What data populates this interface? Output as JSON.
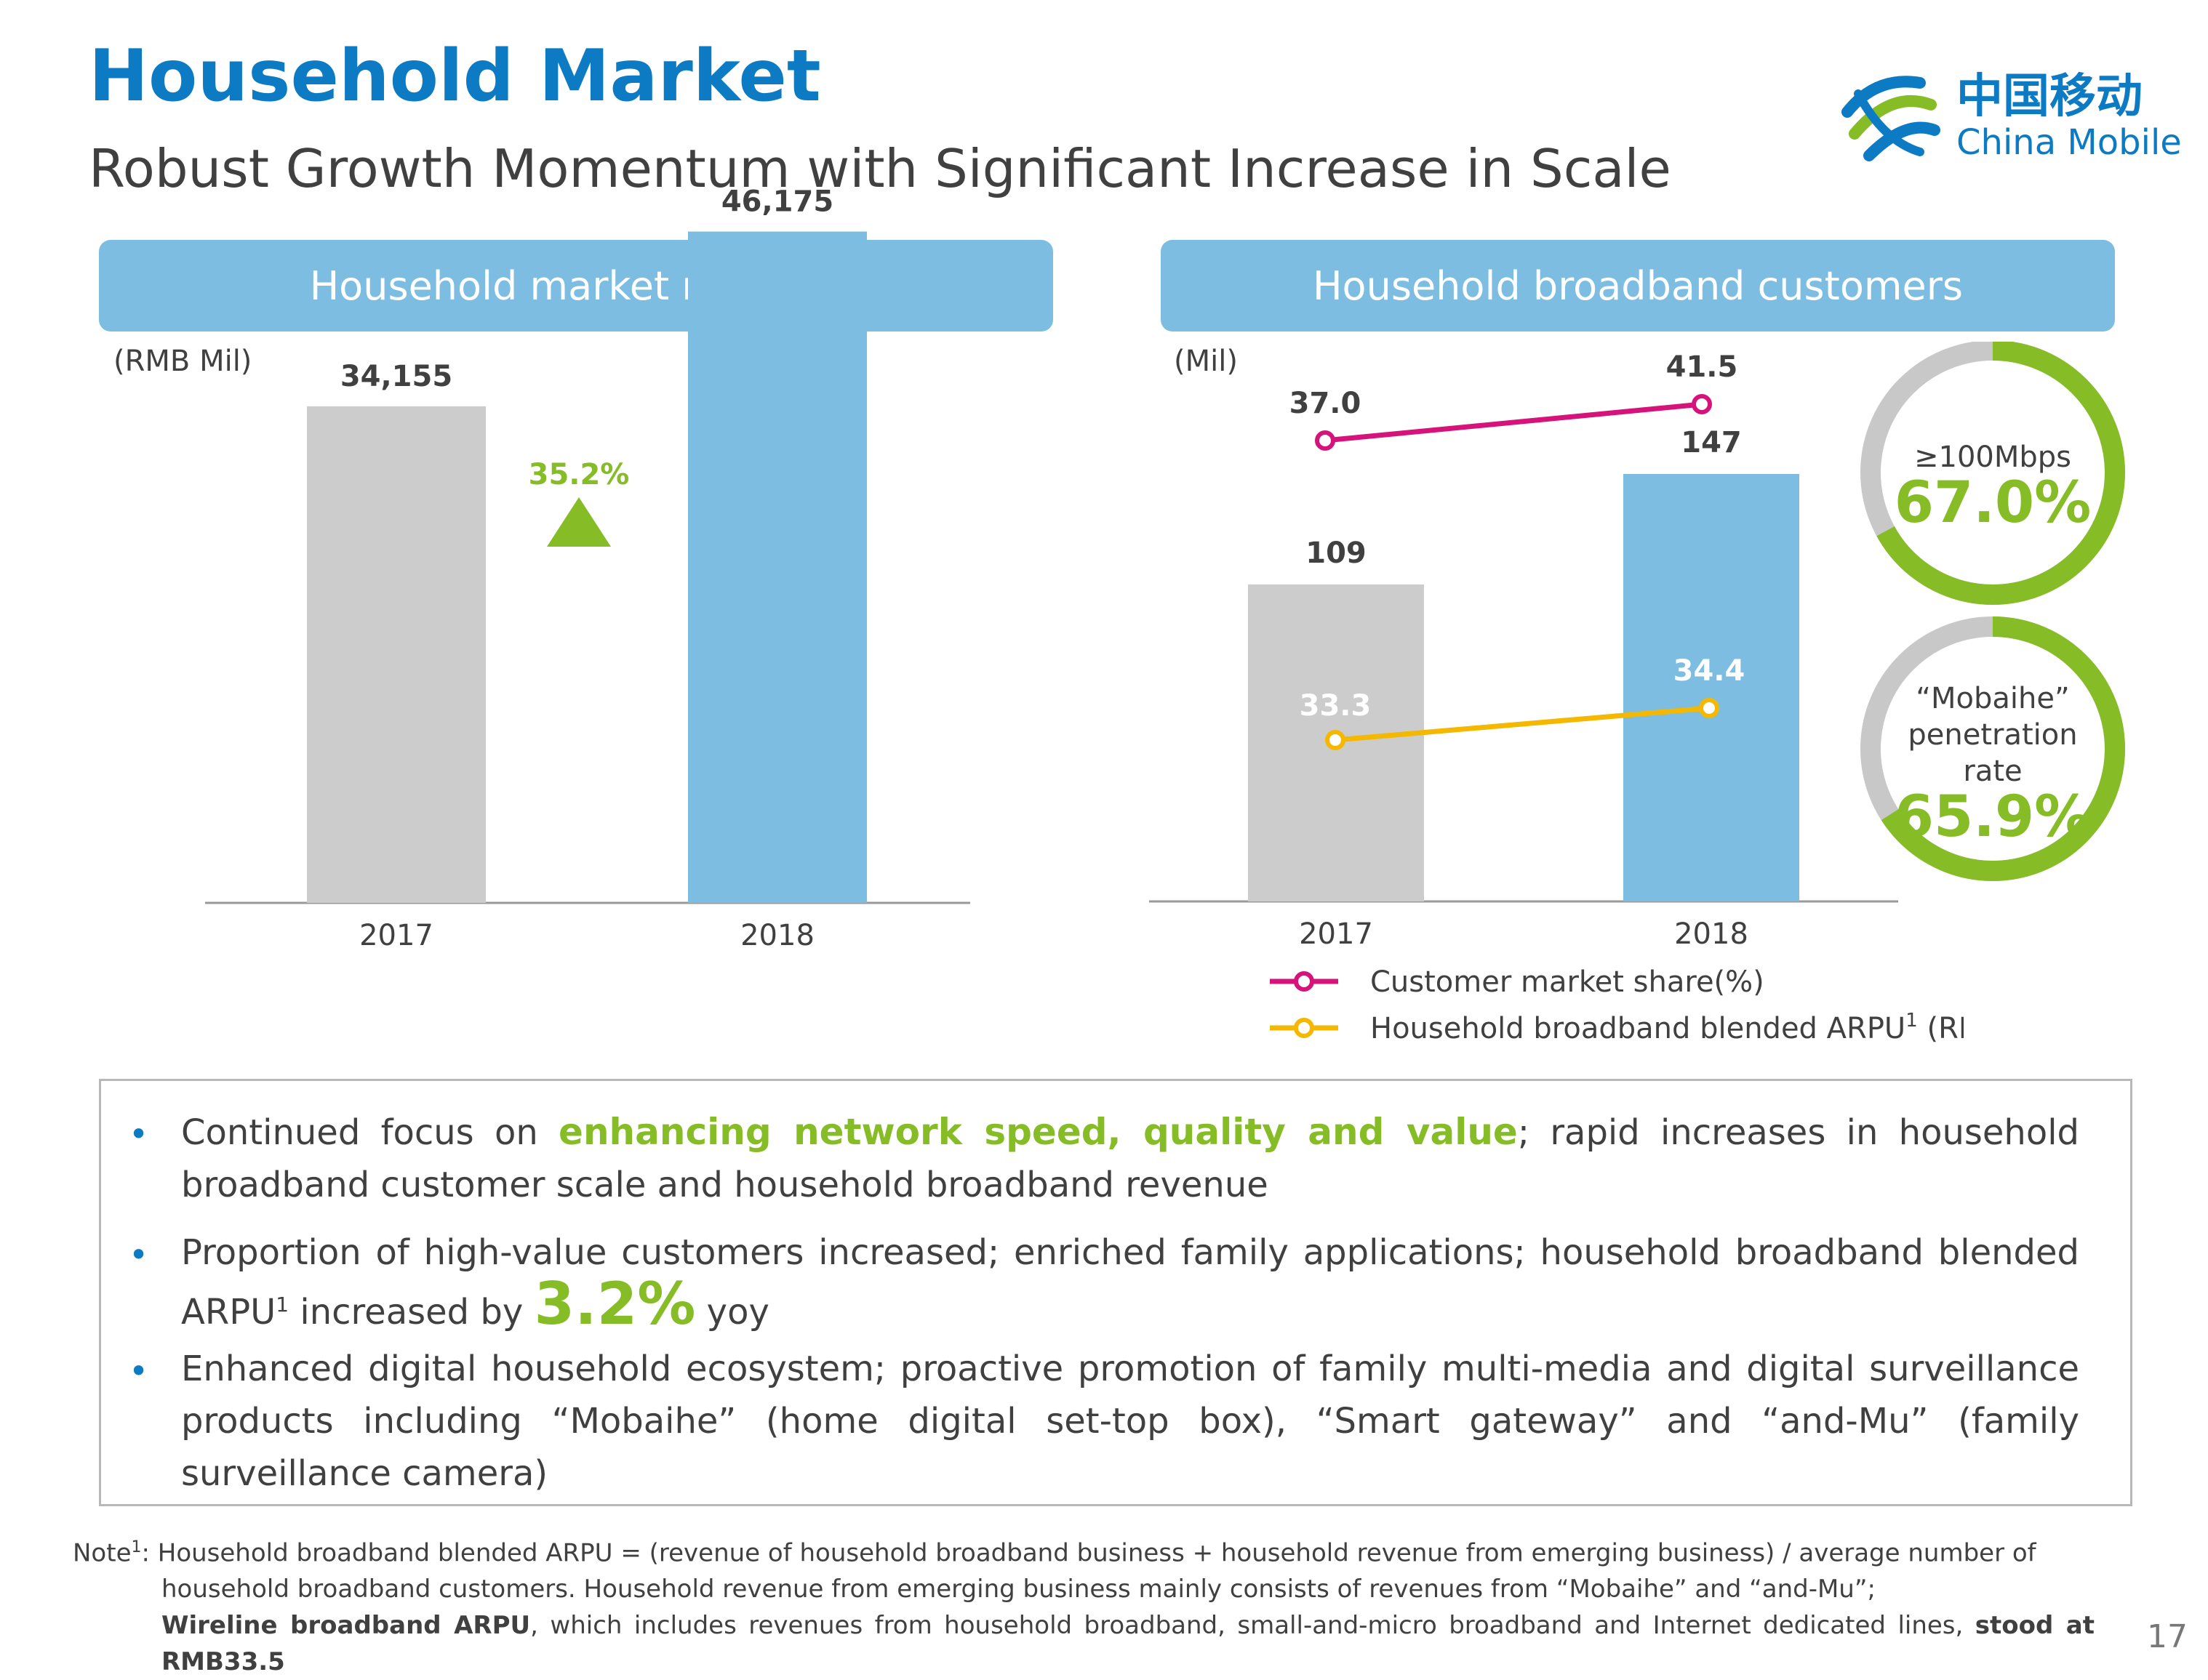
{
  "header": {
    "title": "Household Market",
    "subtitle": "Robust Growth Momentum with Significant Increase in Scale"
  },
  "logo": {
    "chinese": "中国移动",
    "english": "China Mobile"
  },
  "colors": {
    "title_blue": "#0d7bc4",
    "panel_blue": "#7dbde2",
    "bar_grey": "#cccccc",
    "accent_green": "#86bc25",
    "line_pink": "#d6137a",
    "line_yellow": "#f5b800"
  },
  "chart_data": [
    {
      "type": "bar",
      "header": "Household market revenue",
      "unit_label": "(RMB Mil)",
      "categories": [
        "2017",
        "2018"
      ],
      "values": [
        34155,
        46175
      ],
      "value_labels": [
        "34,155",
        "46,175"
      ],
      "growth_label": "35.2%",
      "ylim": [
        0,
        50000
      ]
    },
    {
      "type": "bar",
      "header": "Household broadband customers",
      "unit_label": "(Mil)",
      "categories": [
        "2017",
        "2018"
      ],
      "values": [
        109,
        147
      ],
      "ylim": [
        0,
        160
      ],
      "series": [
        {
          "name": "Customer market share(%)",
          "values": [
            37.0,
            41.5
          ],
          "labels": [
            "37.0",
            "41.5"
          ]
        },
        {
          "name": "Household broadband blended ARPU",
          "superscript": "1",
          "name_suffix": " (RMB)",
          "values": [
            33.3,
            34.4
          ],
          "labels": [
            "33.3",
            "34.4"
          ]
        }
      ]
    }
  ],
  "donuts": [
    {
      "label_lines": [
        "≥100Mbps"
      ],
      "value": 67.0,
      "value_label": "67.0%"
    },
    {
      "label_lines": [
        "“Mobaihe”",
        "penetration",
        "rate"
      ],
      "value": 65.9,
      "value_label": "65.9%"
    }
  ],
  "bullets": {
    "b1_before": "Continued focus on ",
    "b1_highlight": "enhancing network speed, quality and value",
    "b1_after": "; rapid increases in household broadband customer scale and household broadband revenue",
    "b2_before": "Proportion of high-value customers increased; enriched family applications; household broadband blended ARPU",
    "b2_sup": "1",
    "b2_mid": " increased by ",
    "b2_highlight": "3.2%",
    "b2_after": " yoy",
    "b3": "Enhanced digital household ecosystem; proactive promotion of family multi-media and digital surveillance products including “Mobaihe” (home digital set-top box), “Smart gateway” and “and-Mu” (family surveillance camera)"
  },
  "note": {
    "prefix": "Note",
    "sup": "1",
    "line1": ": Household broadband blended ARPU = (revenue of household broadband business + household revenue from emerging business) / average number of",
    "line2": "household broadband customers. Household revenue from emerging business mainly consists of revenues from “Mobaihe” and “and-Mu”;",
    "bold1": "Wireline broadband ARPU",
    "line3": ", which includes revenues from household broadband, small-and-micro broadband and Internet dedicated lines, ",
    "bold2": "stood at RMB33.5"
  },
  "page_number": "17"
}
